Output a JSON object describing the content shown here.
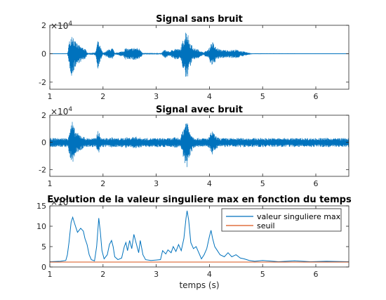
{
  "colors": {
    "signal": "#0072BD",
    "threshold": "#D95319",
    "axis": "#262626"
  },
  "chart_data": [
    {
      "type": "line",
      "title": "Signal sans bruit",
      "y_exponent_label": "×10",
      "y_exponent_value": "4",
      "xlim": [
        1,
        6.62
      ],
      "ylim": [
        -2.5,
        2
      ],
      "xticks": [
        "1",
        "2",
        "3",
        "4",
        "5",
        "6"
      ],
      "xtick_values": [
        1,
        2,
        3,
        4,
        5,
        6
      ],
      "yticks": [
        "-2",
        "0",
        "2"
      ],
      "ytick_values": [
        -2,
        0,
        2
      ],
      "noise_floor": 0.02,
      "envelope": [
        {
          "x": 1.0,
          "y": 0.02
        },
        {
          "x": 1.33,
          "y": 0.03
        },
        {
          "x": 1.36,
          "y": 0.8
        },
        {
          "x": 1.42,
          "y": 1.6
        },
        {
          "x": 1.47,
          "y": 0.9
        },
        {
          "x": 1.55,
          "y": 0.6
        },
        {
          "x": 1.65,
          "y": 0.4
        },
        {
          "x": 1.72,
          "y": 0.05
        },
        {
          "x": 1.86,
          "y": 0.1
        },
        {
          "x": 1.9,
          "y": 1.0
        },
        {
          "x": 1.95,
          "y": 0.5
        },
        {
          "x": 2.0,
          "y": 0.05
        },
        {
          "x": 2.1,
          "y": 0.3
        },
        {
          "x": 2.18,
          "y": 0.4
        },
        {
          "x": 2.22,
          "y": 0.05
        },
        {
          "x": 2.38,
          "y": 0.2
        },
        {
          "x": 2.42,
          "y": 0.4
        },
        {
          "x": 2.5,
          "y": 0.35
        },
        {
          "x": 2.6,
          "y": 0.45
        },
        {
          "x": 2.7,
          "y": 0.35
        },
        {
          "x": 2.75,
          "y": 0.05
        },
        {
          "x": 3.1,
          "y": 0.05
        },
        {
          "x": 3.15,
          "y": 0.3
        },
        {
          "x": 3.25,
          "y": 0.15
        },
        {
          "x": 3.35,
          "y": 0.4
        },
        {
          "x": 3.45,
          "y": 0.3
        },
        {
          "x": 3.52,
          "y": 1.2
        },
        {
          "x": 3.57,
          "y": 1.9
        },
        {
          "x": 3.62,
          "y": 1.0
        },
        {
          "x": 3.7,
          "y": 0.4
        },
        {
          "x": 3.8,
          "y": 0.3
        },
        {
          "x": 3.88,
          "y": 0.1
        },
        {
          "x": 3.98,
          "y": 0.3
        },
        {
          "x": 4.05,
          "y": 0.9
        },
        {
          "x": 4.12,
          "y": 0.45
        },
        {
          "x": 4.2,
          "y": 0.3
        },
        {
          "x": 4.35,
          "y": 0.25
        },
        {
          "x": 4.5,
          "y": 0.3
        },
        {
          "x": 4.65,
          "y": 0.15
        },
        {
          "x": 4.8,
          "y": 0.03
        },
        {
          "x": 6.62,
          "y": 0.02
        }
      ]
    },
    {
      "type": "line",
      "title": "Signal avec bruit",
      "y_exponent_label": "×10",
      "y_exponent_value": "4",
      "xlim": [
        1,
        6.62
      ],
      "ylim": [
        -2.5,
        2
      ],
      "xticks": [
        "1",
        "2",
        "3",
        "4",
        "5",
        "6"
      ],
      "xtick_values": [
        1,
        2,
        3,
        4,
        5,
        6
      ],
      "yticks": [
        "-2",
        "0",
        "2"
      ],
      "ytick_values": [
        -2,
        0,
        2
      ],
      "noise_floor": 0.32,
      "envelope": [
        {
          "x": 1.0,
          "y": 0.02
        },
        {
          "x": 1.33,
          "y": 0.03
        },
        {
          "x": 1.36,
          "y": 0.8
        },
        {
          "x": 1.42,
          "y": 1.6
        },
        {
          "x": 1.47,
          "y": 0.9
        },
        {
          "x": 1.55,
          "y": 0.6
        },
        {
          "x": 1.65,
          "y": 0.4
        },
        {
          "x": 1.72,
          "y": 0.05
        },
        {
          "x": 1.86,
          "y": 0.1
        },
        {
          "x": 1.9,
          "y": 1.0
        },
        {
          "x": 1.95,
          "y": 0.5
        },
        {
          "x": 2.0,
          "y": 0.05
        },
        {
          "x": 2.1,
          "y": 0.3
        },
        {
          "x": 2.18,
          "y": 0.4
        },
        {
          "x": 2.22,
          "y": 0.05
        },
        {
          "x": 2.38,
          "y": 0.2
        },
        {
          "x": 2.42,
          "y": 0.4
        },
        {
          "x": 2.5,
          "y": 0.35
        },
        {
          "x": 2.6,
          "y": 0.45
        },
        {
          "x": 2.7,
          "y": 0.35
        },
        {
          "x": 2.75,
          "y": 0.05
        },
        {
          "x": 3.1,
          "y": 0.05
        },
        {
          "x": 3.15,
          "y": 0.3
        },
        {
          "x": 3.25,
          "y": 0.15
        },
        {
          "x": 3.35,
          "y": 0.4
        },
        {
          "x": 3.45,
          "y": 0.3
        },
        {
          "x": 3.52,
          "y": 1.2
        },
        {
          "x": 3.57,
          "y": 1.9
        },
        {
          "x": 3.62,
          "y": 1.0
        },
        {
          "x": 3.7,
          "y": 0.4
        },
        {
          "x": 3.8,
          "y": 0.3
        },
        {
          "x": 3.88,
          "y": 0.1
        },
        {
          "x": 3.98,
          "y": 0.3
        },
        {
          "x": 4.05,
          "y": 0.9
        },
        {
          "x": 4.12,
          "y": 0.45
        },
        {
          "x": 4.2,
          "y": 0.3
        },
        {
          "x": 4.35,
          "y": 0.25
        },
        {
          "x": 4.5,
          "y": 0.3
        },
        {
          "x": 4.65,
          "y": 0.15
        },
        {
          "x": 4.8,
          "y": 0.03
        },
        {
          "x": 6.62,
          "y": 0.02
        }
      ]
    },
    {
      "type": "line",
      "title": "Evolution de la valeur singuliere max en fonction du temps",
      "y_exponent_label": "×10",
      "y_exponent_value": "5",
      "xlabel": "temps (s)",
      "xlim": [
        1,
        6.62
      ],
      "ylim": [
        0,
        15
      ],
      "xticks": [
        "1",
        "2",
        "3",
        "4",
        "5",
        "6"
      ],
      "xtick_values": [
        1,
        2,
        3,
        4,
        5,
        6
      ],
      "yticks": [
        "0",
        "5",
        "10",
        "15"
      ],
      "ytick_values": [
        0,
        5,
        10,
        15
      ],
      "legend_position": "top-right",
      "series": [
        {
          "name": "valeur singuliere max",
          "points": [
            {
              "x": 1.0,
              "y": 1.3
            },
            {
              "x": 1.2,
              "y": 1.4
            },
            {
              "x": 1.3,
              "y": 1.6
            },
            {
              "x": 1.33,
              "y": 3.0
            },
            {
              "x": 1.36,
              "y": 6.0
            },
            {
              "x": 1.4,
              "y": 11.0
            },
            {
              "x": 1.43,
              "y": 12.2
            },
            {
              "x": 1.47,
              "y": 10.5
            },
            {
              "x": 1.52,
              "y": 8.5
            },
            {
              "x": 1.58,
              "y": 9.5
            },
            {
              "x": 1.63,
              "y": 8.8
            },
            {
              "x": 1.66,
              "y": 7.0
            },
            {
              "x": 1.7,
              "y": 5.5
            },
            {
              "x": 1.74,
              "y": 3.0
            },
            {
              "x": 1.78,
              "y": 1.8
            },
            {
              "x": 1.84,
              "y": 1.5
            },
            {
              "x": 1.88,
              "y": 5.0
            },
            {
              "x": 1.92,
              "y": 12.0
            },
            {
              "x": 1.95,
              "y": 8.5
            },
            {
              "x": 1.98,
              "y": 4.0
            },
            {
              "x": 2.02,
              "y": 2.0
            },
            {
              "x": 2.08,
              "y": 3.0
            },
            {
              "x": 2.12,
              "y": 5.5
            },
            {
              "x": 2.16,
              "y": 6.5
            },
            {
              "x": 2.19,
              "y": 5.0
            },
            {
              "x": 2.22,
              "y": 2.5
            },
            {
              "x": 2.28,
              "y": 1.8
            },
            {
              "x": 2.35,
              "y": 2.2
            },
            {
              "x": 2.4,
              "y": 5.0
            },
            {
              "x": 2.43,
              "y": 6.0
            },
            {
              "x": 2.46,
              "y": 4.0
            },
            {
              "x": 2.5,
              "y": 6.5
            },
            {
              "x": 2.54,
              "y": 4.5
            },
            {
              "x": 2.58,
              "y": 8.0
            },
            {
              "x": 2.62,
              "y": 6.0
            },
            {
              "x": 2.67,
              "y": 3.5
            },
            {
              "x": 2.7,
              "y": 6.5
            },
            {
              "x": 2.75,
              "y": 3.0
            },
            {
              "x": 2.8,
              "y": 1.8
            },
            {
              "x": 2.9,
              "y": 1.6
            },
            {
              "x": 3.0,
              "y": 1.7
            },
            {
              "x": 3.08,
              "y": 1.8
            },
            {
              "x": 3.12,
              "y": 4.0
            },
            {
              "x": 3.18,
              "y": 3.2
            },
            {
              "x": 3.22,
              "y": 4.2
            },
            {
              "x": 3.28,
              "y": 3.5
            },
            {
              "x": 3.32,
              "y": 5.0
            },
            {
              "x": 3.37,
              "y": 3.8
            },
            {
              "x": 3.42,
              "y": 5.5
            },
            {
              "x": 3.47,
              "y": 4.0
            },
            {
              "x": 3.52,
              "y": 7.0
            },
            {
              "x": 3.56,
              "y": 12.0
            },
            {
              "x": 3.58,
              "y": 13.8
            },
            {
              "x": 3.61,
              "y": 11.5
            },
            {
              "x": 3.65,
              "y": 6.0
            },
            {
              "x": 3.7,
              "y": 4.5
            },
            {
              "x": 3.75,
              "y": 5.0
            },
            {
              "x": 3.8,
              "y": 3.5
            },
            {
              "x": 3.85,
              "y": 2.0
            },
            {
              "x": 3.9,
              "y": 3.0
            },
            {
              "x": 3.95,
              "y": 4.5
            },
            {
              "x": 4.0,
              "y": 7.5
            },
            {
              "x": 4.03,
              "y": 9.0
            },
            {
              "x": 4.06,
              "y": 7.0
            },
            {
              "x": 4.1,
              "y": 5.0
            },
            {
              "x": 4.15,
              "y": 4.0
            },
            {
              "x": 4.2,
              "y": 3.0
            },
            {
              "x": 4.28,
              "y": 2.5
            },
            {
              "x": 4.35,
              "y": 3.5
            },
            {
              "x": 4.42,
              "y": 2.5
            },
            {
              "x": 4.5,
              "y": 3.0
            },
            {
              "x": 4.58,
              "y": 2.2
            },
            {
              "x": 4.65,
              "y": 2.0
            },
            {
              "x": 4.75,
              "y": 1.6
            },
            {
              "x": 4.85,
              "y": 1.4
            },
            {
              "x": 5.0,
              "y": 1.6
            },
            {
              "x": 5.3,
              "y": 1.3
            },
            {
              "x": 5.6,
              "y": 1.5
            },
            {
              "x": 5.9,
              "y": 1.3
            },
            {
              "x": 6.2,
              "y": 1.4
            },
            {
              "x": 6.62,
              "y": 1.3
            }
          ]
        },
        {
          "name": "seuil",
          "points": [
            {
              "x": 1.0,
              "y": 1.2
            },
            {
              "x": 6.62,
              "y": 1.2
            }
          ]
        }
      ]
    }
  ]
}
